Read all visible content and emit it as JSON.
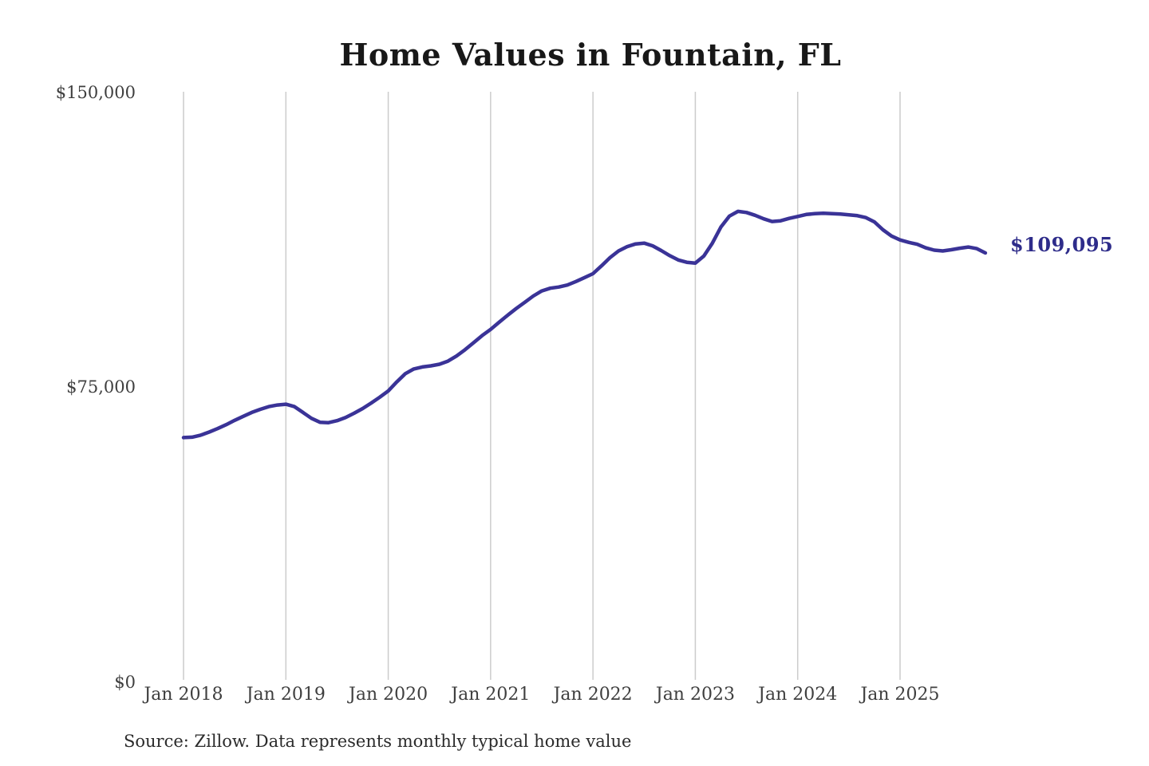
{
  "title": "Home Values in Fountain, FL",
  "source_note": "Source: Zillow. Data represents monthly typical home value",
  "latest_value_label": "$109,095",
  "colors": {
    "line": "#3a3397",
    "latest_label": "#2e2c8a",
    "gridline": "#cccccc",
    "axis_text": "#3f3f3f",
    "title_text": "#181818",
    "source_text": "#2b2b2b"
  },
  "chart_data": {
    "type": "line",
    "title": "Home Values in Fountain, FL",
    "series_name": "Monthly typical home value",
    "x_frequency": "monthly",
    "x_start": "Jan 2018",
    "x_end": "Nov 2025",
    "x_tick_labels": [
      "Jan 2018",
      "Jan 2019",
      "Jan 2020",
      "Jan 2021",
      "Jan 2022",
      "Jan 2023",
      "Jan 2024",
      "Jan 2025"
    ],
    "y_tick_labels": [
      "$0",
      "$75,000",
      "$150,000"
    ],
    "y_tick_values": [
      0,
      75000,
      150000
    ],
    "ylim": [
      0,
      150000
    ],
    "grid": "vertical-only",
    "legend": "none",
    "latest_value": 109095,
    "values": [
      62000,
      62100,
      62600,
      63400,
      64300,
      65300,
      66400,
      67400,
      68400,
      69200,
      69900,
      70300,
      70500,
      69900,
      68400,
      66900,
      65900,
      65800,
      66300,
      67100,
      68200,
      69400,
      70800,
      72300,
      73900,
      76200,
      78300,
      79500,
      80000,
      80300,
      80700,
      81500,
      82800,
      84400,
      86200,
      88000,
      89600,
      91400,
      93200,
      94900,
      96500,
      98100,
      99400,
      100100,
      100400,
      100900,
      101800,
      102800,
      103800,
      105800,
      107900,
      109600,
      110700,
      111400,
      111600,
      110900,
      109700,
      108400,
      107300,
      106700,
      106500,
      108300,
      111600,
      115700,
      118500,
      119700,
      119400,
      118700,
      117800,
      117100,
      117300,
      117900,
      118400,
      118900,
      119100,
      119200,
      119100,
      119000,
      118800,
      118600,
      118100,
      117000,
      115000,
      113400,
      112400,
      111800,
      111300,
      110400,
      109800,
      109600,
      109900,
      110300,
      110600,
      110200,
      109095
    ]
  }
}
